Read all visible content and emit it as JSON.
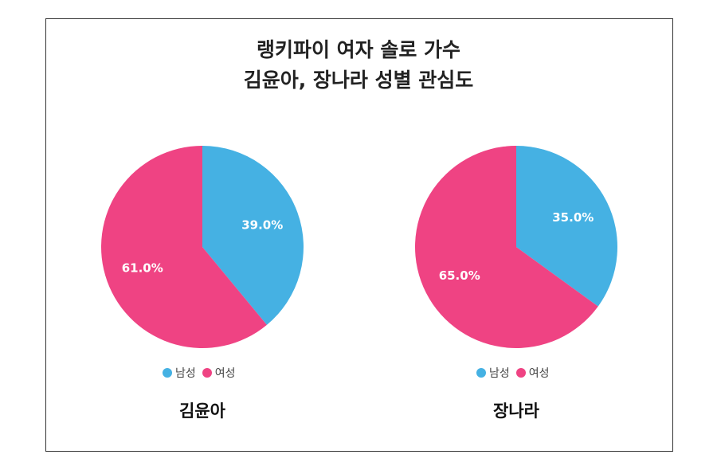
{
  "title": {
    "line1": "랭키파이 여자 솔로 가수",
    "line2": "김윤아, 장나라 성별 관심도"
  },
  "colors": {
    "male": "#45b1e3",
    "female": "#ef4383"
  },
  "chart_data": [
    {
      "type": "pie",
      "title": "김윤아",
      "slices": [
        {
          "label": "남성",
          "value": 39.0,
          "display": "39.0%"
        },
        {
          "label": "여성",
          "value": 61.0,
          "display": "61.0%"
        }
      ],
      "legend": [
        "남성",
        "여성"
      ],
      "legend_position": "bottom"
    },
    {
      "type": "pie",
      "title": "장나라",
      "slices": [
        {
          "label": "남성",
          "value": 35.0,
          "display": "35.0%"
        },
        {
          "label": "여성",
          "value": 65.0,
          "display": "65.0%"
        }
      ],
      "legend": [
        "남성",
        "여성"
      ],
      "legend_position": "bottom"
    }
  ]
}
